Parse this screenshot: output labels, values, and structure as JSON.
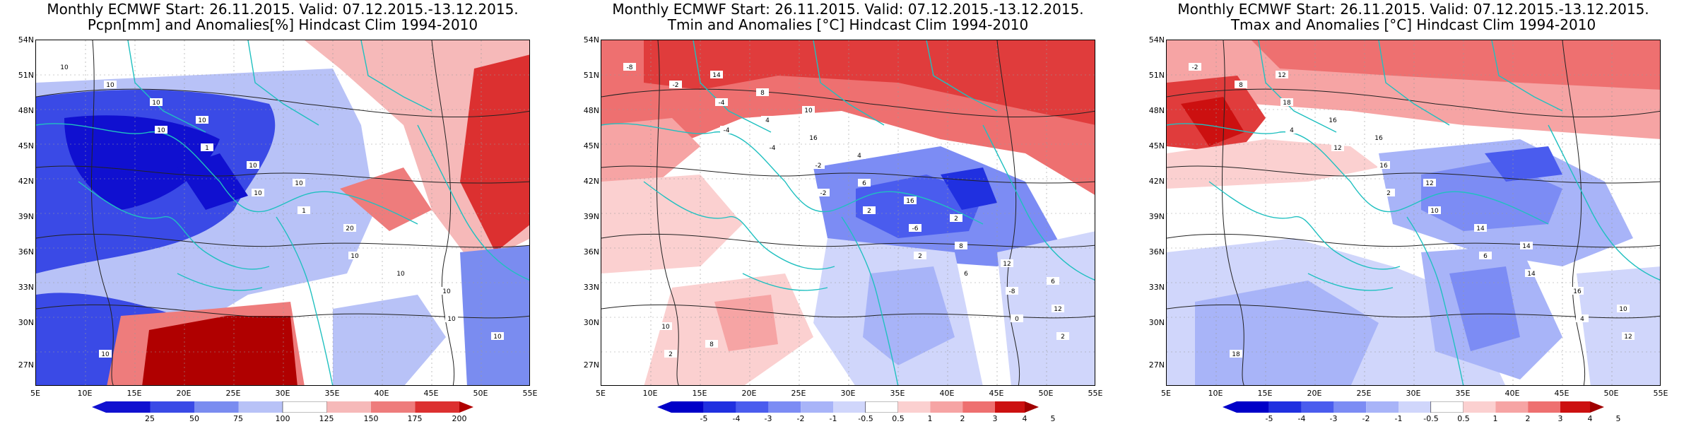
{
  "panels": [
    {
      "title_line1": "Monthly ECMWF Start: 26.11.2015. Valid: 07.12.2015.-13.12.2015.",
      "title_line2": "Pcpn[mm] and Anomalies[%] Hindcast Clim 1994-2010",
      "colorbar": [
        "25",
        "50",
        "75",
        "100",
        "125",
        "150",
        "175",
        "200"
      ],
      "colors": [
        "#1010d0",
        "#3a4ae6",
        "#7a8cf0",
        "#b8c2f7",
        "#ffffff",
        "#f6b9b9",
        "#ee7c7c",
        "#dc3030",
        "#b00000"
      ],
      "contour_labels": [
        "10",
        "10",
        "10",
        "10",
        "10",
        "10",
        "1",
        "1",
        "10",
        "10",
        "10",
        "10",
        "20",
        "10",
        "10",
        "10",
        "10"
      ]
    },
    {
      "title_line1": "Monthly ECMWF Start: 26.11.2015. Valid: 07.12.2015.-13.12.2015.",
      "title_line2": "Tmin and Anomalies [°C] Hindcast Clim 1994-2010",
      "colorbar": [
        "-5",
        "-4",
        "-3",
        "-2",
        "-1",
        "-0.5",
        "0.5",
        "1",
        "2",
        "3",
        "4",
        "5"
      ],
      "colors": [
        "#0000c8",
        "#2030e0",
        "#4a5cee",
        "#7c8cf4",
        "#a8b4f8",
        "#d0d6fb",
        "#ffffff",
        "#fbd0d0",
        "#f6a4a4",
        "#ee7070",
        "#e03c3c",
        "#cc1010",
        "#a00000"
      ],
      "contour_labels": [
        "-8",
        "-4",
        "-2",
        "2",
        "0",
        "-2",
        "-4",
        "2",
        "6",
        "2",
        "-4",
        "-2",
        "-6",
        "-8",
        "2",
        "4",
        "6",
        "8",
        "12",
        "14",
        "16",
        "16",
        "12",
        "10",
        "8",
        "4",
        "2",
        "6",
        "8",
        "10"
      ]
    },
    {
      "title_line1": "Monthly ECMWF Start: 26.11.2015. Valid: 07.12.2015.-13.12.2015.",
      "title_line2": "Tmax and Anomalies [°C] Hindcast Clim 1994-2010",
      "colorbar": [
        "-5",
        "-4",
        "-3",
        "-2",
        "-1",
        "-0.5",
        "0.5",
        "1",
        "2",
        "3",
        "4",
        "5"
      ],
      "colors": [
        "#0000c8",
        "#2030e0",
        "#4a5cee",
        "#7c8cf4",
        "#a8b4f8",
        "#d0d6fb",
        "#ffffff",
        "#fbd0d0",
        "#f6a4a4",
        "#ee7070",
        "#e03c3c",
        "#cc1010",
        "#a00000"
      ],
      "contour_labels": [
        "-2",
        "4",
        "2",
        "6",
        "4",
        "8",
        "12",
        "10",
        "14",
        "12",
        "18",
        "16",
        "14",
        "16",
        "18",
        "16",
        "12",
        "14",
        "10",
        "12",
        "16"
      ]
    }
  ],
  "lat_labels": [
    "54N",
    "51N",
    "48N",
    "45N",
    "42N",
    "39N",
    "36N",
    "33N",
    "30N",
    "27N"
  ],
  "lon_labels": [
    "5E",
    "10E",
    "15E",
    "20E",
    "25E",
    "30E",
    "35E",
    "40E",
    "45E",
    "50E",
    "55E"
  ],
  "coast_color": "#20c0c0"
}
